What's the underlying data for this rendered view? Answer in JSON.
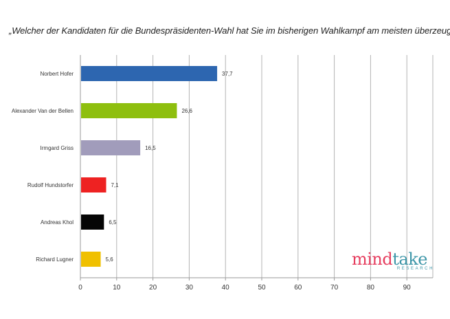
{
  "chart_data": {
    "type": "bar",
    "orientation": "horizontal",
    "title": "„Welcher der Kandidaten für die Bundespräsidenten-Wahl hat Sie im bisherigen Wahlkampf am meisten überzeugt?“",
    "categories": [
      "Norbert Hofer",
      "Alexander Van der Bellen",
      "Irmgard Griss",
      "Rudolf Hundstorfer",
      "Andreas Khol",
      "Richard Lugner"
    ],
    "values": [
      37.7,
      26.6,
      16.5,
      7.1,
      6.5,
      5.6
    ],
    "value_labels": [
      "37,7",
      "26,6",
      "16,5",
      "7,1",
      "6,5",
      "5,6"
    ],
    "colors": [
      "#2d66b0",
      "#8ebf0e",
      "#a19cbb",
      "#ee2222",
      "#050505",
      "#f0c000"
    ],
    "xlim": [
      0,
      97
    ],
    "xticks": [
      0,
      10,
      20,
      30,
      40,
      50,
      60,
      70,
      80,
      90
    ],
    "xtick_labels": [
      "0",
      "10",
      "20",
      "30",
      "40",
      "50",
      "60",
      "70",
      "80",
      "90"
    ],
    "grid": true,
    "legend": "none"
  },
  "logo": {
    "parts": [
      {
        "text": "mind",
        "color": "#e63d5e"
      },
      {
        "text": "take",
        "color": "#3d96a8"
      }
    ],
    "subtitle": "RESEARCH"
  }
}
